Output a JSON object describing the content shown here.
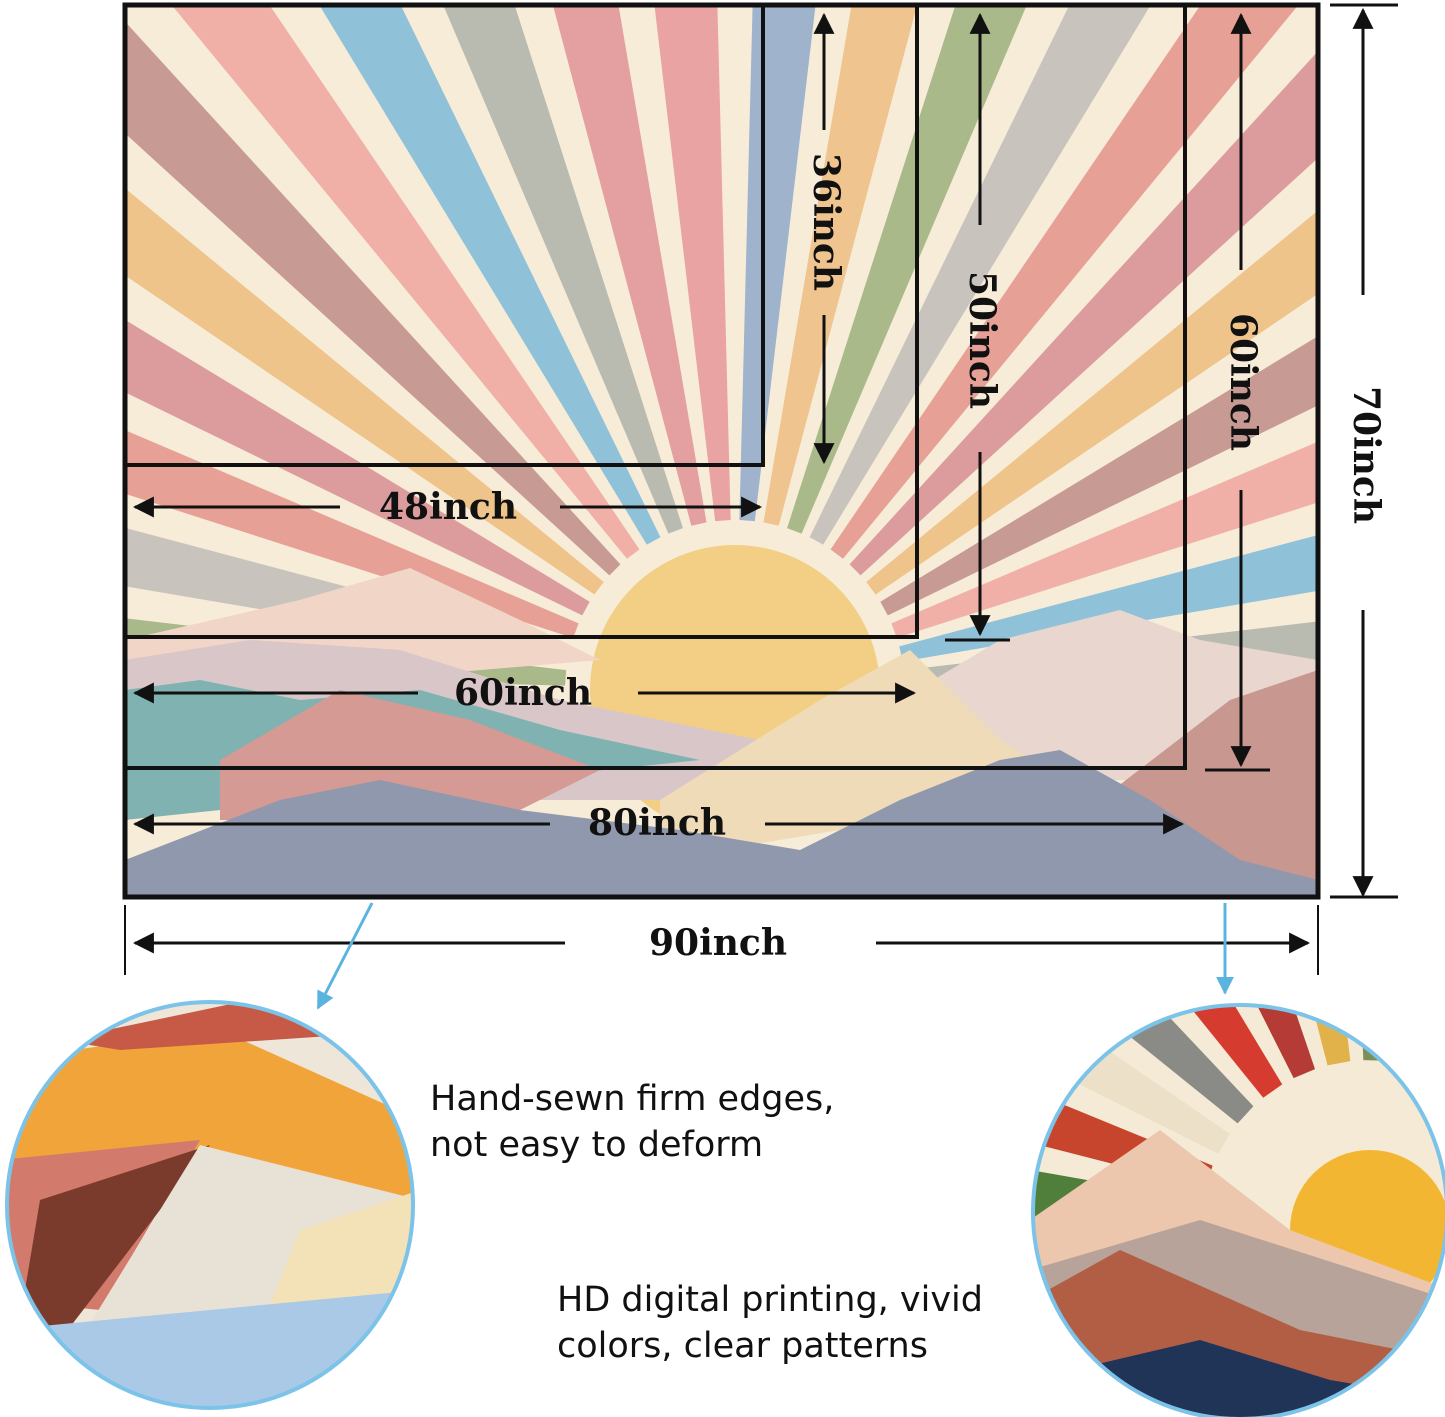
{
  "sizes": {
    "w48": "48inch",
    "h36": "36inch",
    "w60": "60inch",
    "h50": "50inch",
    "w80": "80inch",
    "h60": "60inch",
    "w90": "90inch",
    "h70": "70inch"
  },
  "features": {
    "edges_line1": "Hand-sewn firm edges,",
    "edges_line2": "not easy to deform",
    "print_line1": "HD digital printing, vivid",
    "print_line2": "colors, clear patterns"
  },
  "colors": {
    "frame": "#111111",
    "callout": "#5ab4e0",
    "cream": "#f7ecd8",
    "sun": "#f3cf85",
    "rays": [
      "#a9b98a",
      "#c9c3bd",
      "#e6a095",
      "#dc9c9e",
      "#eec48a",
      "#c89a94",
      "#f0b0a8",
      "#8fc1d8",
      "#b9bab0",
      "#e4a0a0",
      "#e9a3a3",
      "#9fb3cc",
      "#efc48e"
    ]
  }
}
